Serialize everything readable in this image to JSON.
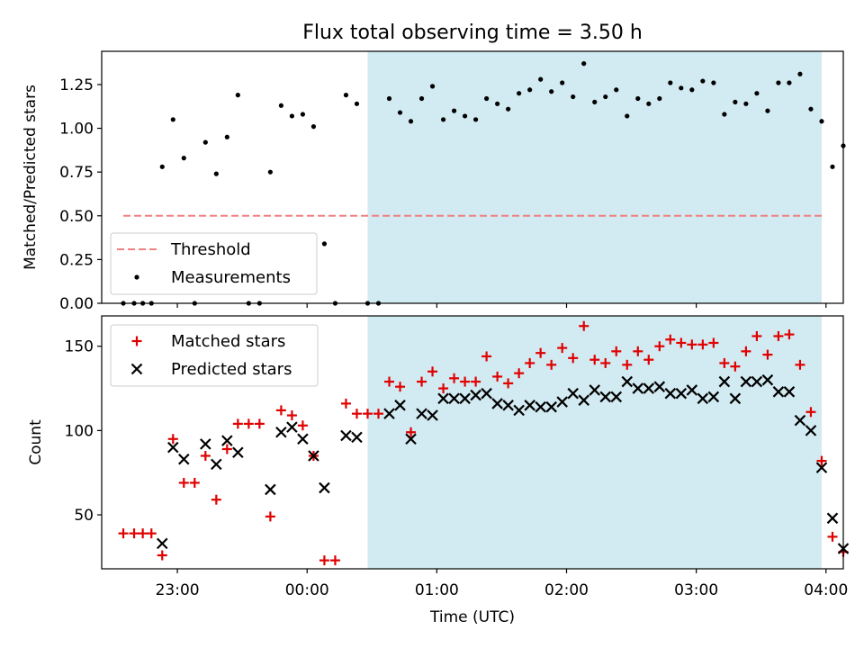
{
  "figure": {
    "title": "Flux total observing time = 3.50 h"
  },
  "colors": {
    "threshold": "#f08080",
    "measurement": "#000000",
    "matched": "#e00000",
    "predicted": "#000000",
    "shade": "#add8e6"
  },
  "chart_data": [
    {
      "type": "scatter",
      "panel": "top",
      "ylabel": "Matched/Predicted stars",
      "xlabel": "",
      "xlim": [
        "22:25",
        "04:08"
      ],
      "ylim": [
        0,
        1.44
      ],
      "yticks": [
        0.0,
        0.25,
        0.5,
        0.75,
        1.0,
        1.25
      ],
      "ytick_labels": [
        "0.00",
        "0.25",
        "0.50",
        "0.75",
        "1.00",
        "1.25"
      ],
      "xtick_labels_visible": false,
      "shaded_interval": [
        "00:28",
        "03:58"
      ],
      "legend": {
        "position": "lower left",
        "entries": [
          "Threshold",
          "Measurements"
        ]
      },
      "threshold": {
        "name": "Threshold",
        "y": 0.5,
        "x": [
          "22:35",
          "03:58"
        ]
      },
      "series": [
        {
          "name": "Measurements",
          "points": [
            [
              "22:35",
              0.0
            ],
            [
              "22:40",
              0.0
            ],
            [
              "22:44",
              0.0
            ],
            [
              "22:48",
              0.0
            ],
            [
              "22:53",
              0.78
            ],
            [
              "22:58",
              1.05
            ],
            [
              "23:03",
              0.83
            ],
            [
              "23:08",
              0.0
            ],
            [
              "23:13",
              0.92
            ],
            [
              "23:18",
              0.74
            ],
            [
              "23:23",
              0.95
            ],
            [
              "23:28",
              1.19
            ],
            [
              "23:33",
              0.0
            ],
            [
              "23:38",
              0.0
            ],
            [
              "23:43",
              0.75
            ],
            [
              "23:48",
              1.13
            ],
            [
              "23:53",
              1.07
            ],
            [
              "23:58",
              1.08
            ],
            [
              "00:03",
              1.01
            ],
            [
              "00:08",
              0.34
            ],
            [
              "00:13",
              0.0
            ],
            [
              "00:18",
              1.19
            ],
            [
              "00:23",
              1.14
            ],
            [
              "00:28",
              0.0
            ],
            [
              "00:33",
              0.0
            ],
            [
              "00:38",
              1.17
            ],
            [
              "00:43",
              1.09
            ],
            [
              "00:48",
              1.04
            ],
            [
              "00:53",
              1.17
            ],
            [
              "00:58",
              1.24
            ],
            [
              "01:03",
              1.05
            ],
            [
              "01:08",
              1.1
            ],
            [
              "01:13",
              1.07
            ],
            [
              "01:18",
              1.05
            ],
            [
              "01:23",
              1.17
            ],
            [
              "01:28",
              1.14
            ],
            [
              "01:33",
              1.11
            ],
            [
              "01:38",
              1.2
            ],
            [
              "01:43",
              1.22
            ],
            [
              "01:48",
              1.28
            ],
            [
              "01:53",
              1.21
            ],
            [
              "01:58",
              1.26
            ],
            [
              "02:03",
              1.18
            ],
            [
              "02:08",
              1.37
            ],
            [
              "02:13",
              1.15
            ],
            [
              "02:18",
              1.18
            ],
            [
              "02:23",
              1.22
            ],
            [
              "02:28",
              1.07
            ],
            [
              "02:33",
              1.17
            ],
            [
              "02:38",
              1.14
            ],
            [
              "02:43",
              1.17
            ],
            [
              "02:48",
              1.26
            ],
            [
              "02:53",
              1.23
            ],
            [
              "02:58",
              1.22
            ],
            [
              "03:03",
              1.27
            ],
            [
              "03:08",
              1.26
            ],
            [
              "03:13",
              1.08
            ],
            [
              "03:18",
              1.15
            ],
            [
              "03:23",
              1.14
            ],
            [
              "03:28",
              1.2
            ],
            [
              "03:33",
              1.1
            ],
            [
              "03:38",
              1.26
            ],
            [
              "03:43",
              1.26
            ],
            [
              "03:48",
              1.31
            ],
            [
              "03:53",
              1.11
            ],
            [
              "03:58",
              1.04
            ],
            [
              "04:03",
              0.78
            ],
            [
              "04:08",
              0.9
            ]
          ]
        }
      ],
      "grid": false
    },
    {
      "type": "scatter",
      "panel": "bottom",
      "xlabel": "Time (UTC)",
      "ylabel": "Count",
      "xlim": [
        "22:25",
        "04:08"
      ],
      "ylim": [
        18,
        168
      ],
      "yticks": [
        50,
        100,
        150
      ],
      "ytick_labels": [
        "50",
        "100",
        "150"
      ],
      "xticks": [
        "23:00",
        "00:00",
        "01:00",
        "02:00",
        "03:00",
        "04:00"
      ],
      "xtick_labels": [
        "23:00",
        "00:00",
        "01:00",
        "02:00",
        "03:00",
        "04:00"
      ],
      "shaded_interval": [
        "00:28",
        "03:58"
      ],
      "legend": {
        "position": "upper left",
        "entries": [
          "Matched stars",
          "Predicted stars"
        ]
      },
      "series": [
        {
          "name": "Matched stars",
          "marker": "plus",
          "points": [
            [
              "22:35",
              39
            ],
            [
              "22:40",
              39
            ],
            [
              "22:44",
              39
            ],
            [
              "22:48",
              39
            ],
            [
              "22:53",
              26
            ],
            [
              "22:58",
              95
            ],
            [
              "23:03",
              69
            ],
            [
              "23:08",
              69
            ],
            [
              "23:13",
              85
            ],
            [
              "23:18",
              59
            ],
            [
              "23:23",
              89
            ],
            [
              "23:28",
              104
            ],
            [
              "23:33",
              104
            ],
            [
              "23:38",
              104
            ],
            [
              "23:43",
              49
            ],
            [
              "23:48",
              112
            ],
            [
              "23:53",
              109
            ],
            [
              "23:58",
              103
            ],
            [
              "00:03",
              85
            ],
            [
              "00:08",
              23
            ],
            [
              "00:13",
              23
            ],
            [
              "00:18",
              116
            ],
            [
              "00:23",
              110
            ],
            [
              "00:28",
              110
            ],
            [
              "00:33",
              110
            ],
            [
              "00:38",
              129
            ],
            [
              "00:43",
              126
            ],
            [
              "00:48",
              99
            ],
            [
              "00:53",
              129
            ],
            [
              "00:58",
              135
            ],
            [
              "01:03",
              125
            ],
            [
              "01:08",
              131
            ],
            [
              "01:13",
              129
            ],
            [
              "01:18",
              129
            ],
            [
              "01:23",
              144
            ],
            [
              "01:28",
              132
            ],
            [
              "01:33",
              128
            ],
            [
              "01:38",
              134
            ],
            [
              "01:43",
              140
            ],
            [
              "01:48",
              146
            ],
            [
              "01:53",
              139
            ],
            [
              "01:58",
              149
            ],
            [
              "02:03",
              143
            ],
            [
              "02:08",
              162
            ],
            [
              "02:13",
              142
            ],
            [
              "02:18",
              140
            ],
            [
              "02:23",
              147
            ],
            [
              "02:28",
              139
            ],
            [
              "02:33",
              147
            ],
            [
              "02:38",
              142
            ],
            [
              "02:43",
              150
            ],
            [
              "02:48",
              154
            ],
            [
              "02:53",
              152
            ],
            [
              "02:58",
              151
            ],
            [
              "03:03",
              151
            ],
            [
              "03:08",
              152
            ],
            [
              "03:13",
              140
            ],
            [
              "03:18",
              138
            ],
            [
              "03:23",
              147
            ],
            [
              "03:28",
              156
            ],
            [
              "03:33",
              145
            ],
            [
              "03:38",
              156
            ],
            [
              "03:43",
              157
            ],
            [
              "03:48",
              139
            ],
            [
              "03:53",
              111
            ],
            [
              "03:58",
              82
            ],
            [
              "04:03",
              37
            ],
            [
              "04:08",
              28
            ]
          ]
        },
        {
          "name": "Predicted stars",
          "marker": "x",
          "points": [
            [
              "22:53",
              33
            ],
            [
              "22:58",
              90
            ],
            [
              "23:03",
              83
            ],
            [
              "23:13",
              92
            ],
            [
              "23:18",
              80
            ],
            [
              "23:23",
              94
            ],
            [
              "23:28",
              87
            ],
            [
              "23:43",
              65
            ],
            [
              "23:48",
              99
            ],
            [
              "23:53",
              102
            ],
            [
              "23:58",
              95
            ],
            [
              "00:03",
              85
            ],
            [
              "00:08",
              66
            ],
            [
              "00:18",
              97
            ],
            [
              "00:23",
              96
            ],
            [
              "00:38",
              110
            ],
            [
              "00:43",
              115
            ],
            [
              "00:48",
              95
            ],
            [
              "00:53",
              110
            ],
            [
              "00:58",
              109
            ],
            [
              "01:03",
              119
            ],
            [
              "01:08",
              119
            ],
            [
              "01:13",
              119
            ],
            [
              "01:18",
              121
            ],
            [
              "01:23",
              122
            ],
            [
              "01:28",
              116
            ],
            [
              "01:33",
              115
            ],
            [
              "01:38",
              112
            ],
            [
              "01:43",
              115
            ],
            [
              "01:48",
              114
            ],
            [
              "01:53",
              114
            ],
            [
              "01:58",
              117
            ],
            [
              "02:03",
              122
            ],
            [
              "02:08",
              118
            ],
            [
              "02:13",
              124
            ],
            [
              "02:18",
              120
            ],
            [
              "02:23",
              120
            ],
            [
              "02:28",
              129
            ],
            [
              "02:33",
              125
            ],
            [
              "02:38",
              125
            ],
            [
              "02:43",
              126
            ],
            [
              "02:48",
              122
            ],
            [
              "02:53",
              122
            ],
            [
              "02:58",
              124
            ],
            [
              "03:03",
              119
            ],
            [
              "03:08",
              120
            ],
            [
              "03:13",
              129
            ],
            [
              "03:18",
              119
            ],
            [
              "03:23",
              129
            ],
            [
              "03:28",
              129
            ],
            [
              "03:33",
              130
            ],
            [
              "03:38",
              123
            ],
            [
              "03:43",
              123
            ],
            [
              "03:48",
              106
            ],
            [
              "03:53",
              100
            ],
            [
              "03:58",
              78
            ],
            [
              "04:03",
              48
            ],
            [
              "04:08",
              30
            ]
          ]
        }
      ],
      "grid": false
    }
  ]
}
